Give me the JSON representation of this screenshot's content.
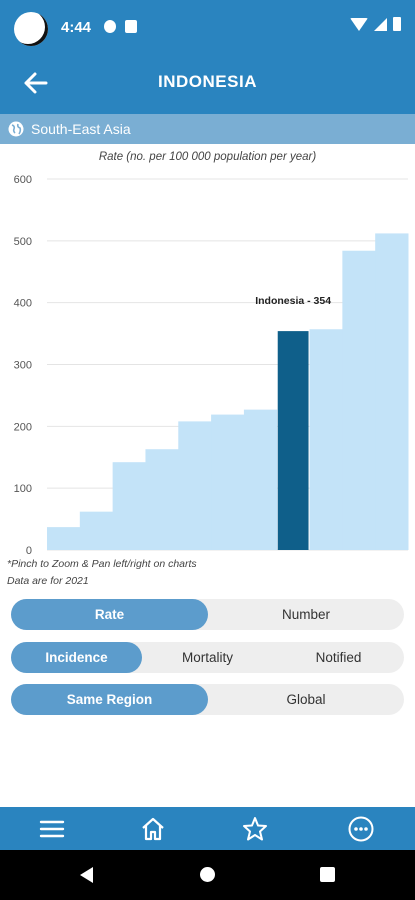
{
  "status_bar": {
    "time": "4:44"
  },
  "header": {
    "title": "INDONESIA"
  },
  "region": {
    "label": "South-East Asia"
  },
  "chart_data": {
    "type": "bar",
    "title": "Rate (no. per 100 000 population per year)",
    "ylim": [
      0,
      600
    ],
    "y_ticks": [
      0,
      100,
      200,
      300,
      400,
      500,
      600
    ],
    "values": [
      37,
      62,
      142,
      163,
      208,
      219,
      227,
      354,
      357,
      484,
      512
    ],
    "highlight_index": 7,
    "highlight_label": "Indonesia - 354",
    "colors": {
      "default": "#c3e3f8",
      "highlight": "#0f5f8a"
    },
    "grid": true
  },
  "notes": {
    "zoom_hint": "*Pinch to Zoom & Pan left/right on charts",
    "data_year": "Data are for 2021"
  },
  "toggles": {
    "measure": {
      "options": [
        "Rate",
        "Number"
      ],
      "selected": "Rate"
    },
    "indicator": {
      "options": [
        "Incidence",
        "Mortality",
        "Notified"
      ],
      "selected": "Incidence"
    },
    "scope": {
      "options": [
        "Same Region",
        "Global"
      ],
      "selected": "Same Region"
    }
  },
  "bottom_nav": {
    "items": [
      "menu-icon",
      "home-icon",
      "star-icon",
      "more-icon"
    ]
  }
}
